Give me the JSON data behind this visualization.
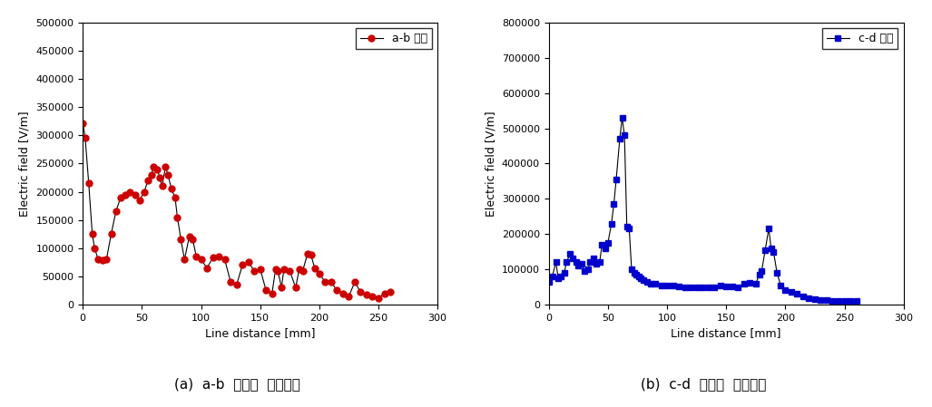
{
  "ab_x": [
    0,
    2,
    5,
    8,
    10,
    13,
    17,
    20,
    24,
    28,
    32,
    36,
    40,
    44,
    48,
    52,
    55,
    58,
    60,
    63,
    65,
    67,
    70,
    72,
    75,
    78,
    80,
    83,
    86,
    90,
    93,
    96,
    100,
    105,
    110,
    115,
    120,
    125,
    130,
    135,
    140,
    145,
    150,
    155,
    160,
    163,
    165,
    168,
    170,
    175,
    180,
    183,
    186,
    190,
    193,
    196,
    200,
    205,
    210,
    215,
    220,
    225,
    230,
    235,
    240,
    245,
    250,
    255,
    260
  ],
  "ab_y": [
    322000,
    296000,
    215000,
    125000,
    100000,
    80000,
    78000,
    80000,
    125000,
    165000,
    190000,
    195000,
    200000,
    195000,
    185000,
    200000,
    220000,
    230000,
    245000,
    240000,
    225000,
    210000,
    245000,
    230000,
    205000,
    190000,
    155000,
    115000,
    80000,
    120000,
    115000,
    85000,
    80000,
    65000,
    83000,
    85000,
    80000,
    40000,
    35000,
    70000,
    75000,
    60000,
    63000,
    25000,
    20000,
    62000,
    60000,
    30000,
    62000,
    60000,
    30000,
    63000,
    60000,
    90000,
    88000,
    65000,
    55000,
    40000,
    40000,
    25000,
    20000,
    15000,
    40000,
    22000,
    18000,
    15000,
    12000,
    20000,
    22000
  ],
  "cd_x": [
    0,
    3,
    6,
    8,
    10,
    13,
    15,
    18,
    20,
    23,
    25,
    28,
    30,
    33,
    35,
    38,
    40,
    43,
    45,
    48,
    50,
    53,
    55,
    57,
    60,
    62,
    64,
    66,
    68,
    70,
    72,
    74,
    76,
    78,
    80,
    83,
    86,
    90,
    95,
    100,
    105,
    110,
    115,
    120,
    125,
    130,
    135,
    140,
    145,
    150,
    155,
    160,
    165,
    170,
    175,
    178,
    180,
    183,
    186,
    188,
    190,
    193,
    196,
    200,
    205,
    210,
    215,
    220,
    225,
    230,
    235,
    240,
    245,
    250,
    255,
    260
  ],
  "cd_y": [
    65000,
    80000,
    120000,
    75000,
    80000,
    90000,
    120000,
    145000,
    130000,
    120000,
    110000,
    115000,
    95000,
    100000,
    120000,
    130000,
    115000,
    120000,
    170000,
    160000,
    175000,
    230000,
    285000,
    355000,
    470000,
    530000,
    480000,
    220000,
    215000,
    100000,
    90000,
    85000,
    80000,
    75000,
    70000,
    65000,
    60000,
    60000,
    55000,
    55000,
    53000,
    52000,
    50000,
    50000,
    50000,
    50000,
    50000,
    50000,
    55000,
    52000,
    52000,
    50000,
    60000,
    63000,
    60000,
    85000,
    95000,
    155000,
    215000,
    160000,
    150000,
    90000,
    55000,
    40000,
    35000,
    30000,
    22000,
    18000,
    15000,
    13000,
    12000,
    11000,
    10000,
    10000,
    10000,
    10000
  ],
  "ab_color": "#cc0000",
  "cd_color": "#0000cc",
  "ab_label": "a-b 라인",
  "cd_label": "c-d 라인",
  "xlabel": "Line distance [mm]",
  "ylabel": "Electric field [V/m]",
  "ab_ylim": [
    0,
    500000
  ],
  "cd_ylim": [
    0,
    800000
  ],
  "ab_xlim": [
    0,
    300
  ],
  "cd_xlim": [
    0,
    300
  ],
  "ab_yticks": [
    0,
    50000,
    100000,
    150000,
    200000,
    250000,
    300000,
    350000,
    400000,
    450000,
    500000
  ],
  "cd_yticks": [
    0,
    100000,
    200000,
    300000,
    400000,
    500000,
    600000,
    700000,
    800000
  ],
  "xticks": [
    0,
    50,
    100,
    150,
    200,
    250,
    300
  ],
  "caption_a": "(a)  a-b  라인의  전계분포",
  "caption_b": "(b)  c-d  라인의  전계분포",
  "marker_size": 5,
  "line_color": "#000000"
}
